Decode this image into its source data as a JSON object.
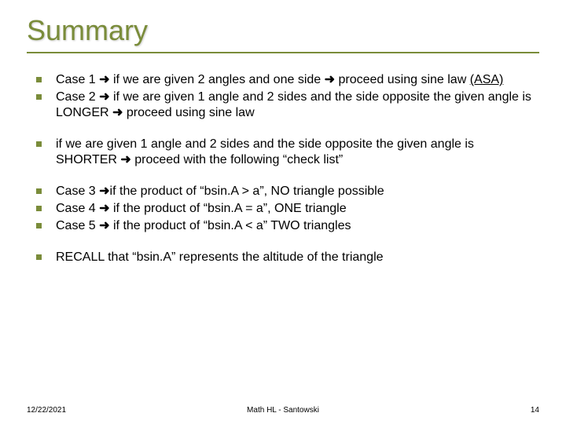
{
  "colors": {
    "accent": "#7a8c3a",
    "title_border": "#7a8c3a",
    "bullet_marker": "#7a8c3a",
    "text": "#000000",
    "background": "#ffffff"
  },
  "title": "Summary",
  "groups": [
    {
      "items": [
        {
          "pre": "Case 1 ",
          "mid": " if we are given 2 angles and one side ",
          "post": " proceed using sine law ",
          "underlined": "(ASA)"
        },
        {
          "pre": "Case 2 ",
          "mid": " if we are given 1 angle and 2 sides and the side opposite the given angle is LONGER ",
          "post": " proceed using sine law",
          "underlined": ""
        }
      ]
    },
    {
      "items": [
        {
          "pre": "if we are given 1 angle and 2 sides and the side opposite the given angle is SHORTER ",
          "mid": "",
          "post": " proceed with the following “check list”",
          "underlined": ""
        }
      ]
    },
    {
      "items": [
        {
          "pre": "Case 3 ",
          "mid": "",
          "post": "if the product of “bsin.A > a”, NO triangle possible",
          "underlined": ""
        },
        {
          "pre": "Case 4 ",
          "mid": "",
          "post": " if the product of “bsin.A = a”, ONE triangle",
          "underlined": ""
        },
        {
          "pre": "Case 5 ",
          "mid": "",
          "post": " if the product of “bsin.A < a” TWO triangles",
          "underlined": ""
        }
      ]
    },
    {
      "items": [
        {
          "pre": "RECALL that “bsin.A” represents the altitude of the triangle",
          "mid": "",
          "post": "",
          "underlined": "",
          "noarrow": true
        }
      ]
    }
  ],
  "footer": {
    "date": "12/22/2021",
    "center": "Math HL - Santowski",
    "page": "14"
  },
  "arrow_glyph": "➜"
}
